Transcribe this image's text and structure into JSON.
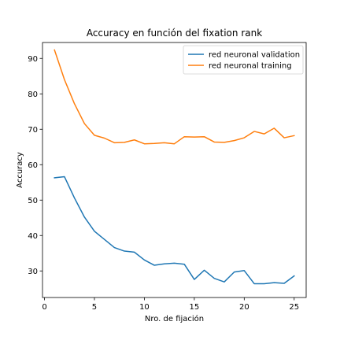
{
  "chart_data": {
    "type": "line",
    "title": "Accuracy en función del fixation rank",
    "xlabel": "Nro. de fijación",
    "ylabel": "Accuracy",
    "xlim": [
      -0.2,
      26.2
    ],
    "ylim": [
      22.5,
      94.5
    ],
    "xticks": [
      0,
      5,
      10,
      15,
      20,
      25
    ],
    "yticks": [
      30,
      40,
      50,
      60,
      70,
      80,
      90
    ],
    "grid": false,
    "legend_position": "top-right",
    "x": [
      1,
      2,
      3,
      4,
      5,
      6,
      7,
      8,
      9,
      10,
      11,
      12,
      13,
      14,
      15,
      16,
      17,
      18,
      19,
      20,
      21,
      22,
      23,
      24,
      25
    ],
    "series": [
      {
        "name": "red neuronal validation",
        "color": "#1f77b4",
        "values": [
          56.3,
          56.6,
          50.6,
          45.2,
          41.2,
          38.9,
          36.6,
          35.6,
          35.3,
          33.1,
          31.6,
          32.0,
          32.2,
          31.9,
          27.6,
          30.2,
          27.9,
          26.9,
          29.7,
          30.1,
          26.4,
          26.4,
          26.7,
          26.5,
          28.6
        ]
      },
      {
        "name": "red neuronal training",
        "color": "#ff7f0e",
        "values": [
          92.4,
          84.0,
          77.2,
          71.6,
          68.3,
          67.5,
          66.2,
          66.3,
          67.0,
          65.9,
          66.0,
          66.2,
          65.9,
          67.9,
          67.8,
          67.9,
          66.4,
          66.3,
          66.8,
          67.6,
          69.4,
          68.7,
          70.3,
          67.6,
          68.2
        ]
      }
    ]
  }
}
